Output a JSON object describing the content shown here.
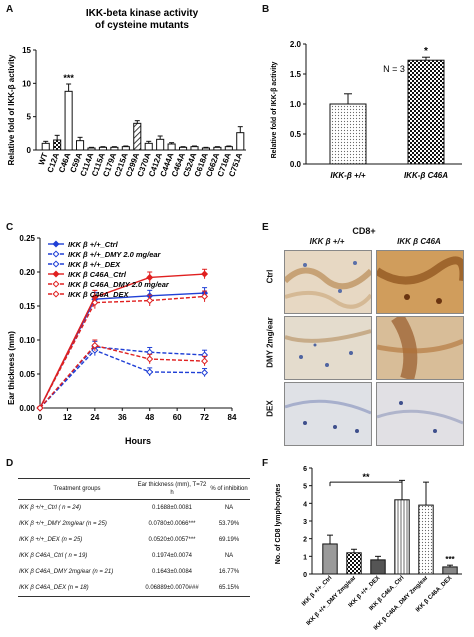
{
  "panels": {
    "A": {
      "label": "A",
      "title_line1": "IKK-beta kinase activity",
      "title_line2": "of cysteine mutants",
      "ylabel": "Relative fold of IKK-β activity",
      "yticks": [
        "0",
        "5",
        "10",
        "15"
      ],
      "annotation": "***"
    },
    "B": {
      "label": "B",
      "n_label": "N = 3",
      "ylabel": "Relative fold of IKK-β activity",
      "yticks": [
        "0.0",
        "0.5",
        "1.0",
        "1.5",
        "2.0"
      ],
      "annotation": "*"
    },
    "C": {
      "label": "C",
      "ylabel": "Ear thickness (mm)",
      "xlabel": "Hours",
      "xticks": [
        "0",
        "12",
        "24",
        "36",
        "48",
        "60",
        "72",
        "84"
      ],
      "yticks": [
        "0.00",
        "0.05",
        "0.10",
        "0.15",
        "0.20",
        "0.25"
      ]
    },
    "D": {
      "label": "D",
      "headers": [
        "Treatment groups",
        "Ear thickness (mm), T=72 h",
        "% of inhibition"
      ],
      "rows": [
        {
          "group": "IKK β +/+_Ctrl  ( n = 24)",
          "value": "0.1688±0.0081",
          "inhibition": "NA"
        },
        {
          "group": "IKK β +/+_DMY 2mg/ear (n = 25)",
          "value": "0.0780±0.0066***",
          "inhibition": "53.79%"
        },
        {
          "group": "IKK β +/+_DEX (n = 25)",
          "value": "0.0520±0.0057***",
          "inhibition": "69.19%"
        },
        {
          "group": "IKK β C46A_Ctrl  ( n = 19)",
          "value": "0.1974±0.0074",
          "inhibition": "NA"
        },
        {
          "group": "IKK β C46A_DMY 2mg/ear (n = 21)",
          "value": "0.1643±0.0084",
          "inhibition": "16.77%"
        },
        {
          "group": "IKK β C46A_DEX (n = 18)",
          "value": "0.06889±0.0070###",
          "inhibition": "65.15%"
        }
      ]
    },
    "E": {
      "label": "E",
      "title": "CD8+",
      "col_headers": [
        "IKK β +/+",
        "IKK β C46A"
      ],
      "row_headers": [
        "Ctrl",
        "DMY 2mg/ear",
        "DEX"
      ]
    },
    "F": {
      "label": "F",
      "ylabel": "No. of CD8 lymphocytes",
      "yticks": [
        "0",
        "1",
        "2",
        "3",
        "4",
        "5",
        "6"
      ],
      "annotation_top": "**",
      "annotation_bar": "***"
    }
  },
  "chart_data": [
    {
      "panel": "A",
      "type": "bar",
      "categories": [
        "WT",
        "C12A",
        "C46A",
        "C59A",
        "C114A",
        "C115A",
        "C179A",
        "C215A",
        "C299A",
        "C370A",
        "C412A",
        "C444A",
        "C464A",
        "C524A",
        "C618A",
        "C662A",
        "C716A",
        "C751A"
      ],
      "values": [
        1.0,
        1.5,
        8.8,
        1.4,
        0.3,
        0.4,
        0.4,
        0.5,
        4.0,
        1.0,
        1.6,
        0.9,
        0.4,
        0.5,
        0.3,
        0.4,
        0.5,
        2.6
      ],
      "errors": [
        0.3,
        0.7,
        1.1,
        0.5,
        0.1,
        0.1,
        0.1,
        0.1,
        0.4,
        0.3,
        0.5,
        0.2,
        0.1,
        0.1,
        0.1,
        0.1,
        0.1,
        0.9
      ],
      "title": "IKK-beta kinase activity of cysteine mutants",
      "ylabel": "Relative fold of IKK-β activity",
      "ylim": [
        0,
        15
      ]
    },
    {
      "panel": "B",
      "type": "bar",
      "categories": [
        "IKK-β +/+",
        "IKK-β C46A"
      ],
      "values": [
        1.0,
        1.73
      ],
      "errors": [
        0.17,
        0.05
      ],
      "ylabel": "Relative fold of IKK-β activity",
      "ylim": [
        0,
        2.0
      ]
    },
    {
      "panel": "C",
      "type": "line",
      "x": [
        0,
        24,
        48,
        72
      ],
      "series": [
        {
          "name": "IKK β +/+_Ctrl",
          "values": [
            0.0,
            0.16,
            0.165,
            0.169
          ],
          "errors": [
            0.002,
            0.01,
            0.008,
            0.008
          ],
          "color": "#1f3fd6",
          "dash": false,
          "filled": true
        },
        {
          "name": "IKK β +/+_DMY 2.0 mg/ear",
          "values": [
            0.0,
            0.09,
            0.082,
            0.078
          ],
          "errors": [
            0.002,
            0.008,
            0.007,
            0.007
          ],
          "color": "#1f3fd6",
          "dash": true,
          "filled": false
        },
        {
          "name": "IKK β +/+_DEX",
          "values": [
            0.0,
            0.085,
            0.053,
            0.052
          ],
          "errors": [
            0.002,
            0.008,
            0.006,
            0.006
          ],
          "color": "#1f3fd6",
          "dash": true,
          "filled": false
        },
        {
          "name": "IKK β C46A_Ctrl",
          "values": [
            0.0,
            0.163,
            0.192,
            0.197
          ],
          "errors": [
            0.002,
            0.01,
            0.008,
            0.007
          ],
          "color": "#e02020",
          "dash": false,
          "filled": true
        },
        {
          "name": "IKK β C46A_DMY 2.0 mg/ear",
          "values": [
            0.0,
            0.155,
            0.158,
            0.164
          ],
          "errors": [
            0.002,
            0.009,
            0.008,
            0.008
          ],
          "color": "#e02020",
          "dash": true,
          "filled": false
        },
        {
          "name": "IKK β C46A_DEX",
          "values": [
            0.0,
            0.092,
            0.072,
            0.069
          ],
          "errors": [
            0.002,
            0.008,
            0.007,
            0.007
          ],
          "color": "#e02020",
          "dash": true,
          "filled": false
        }
      ],
      "xlabel": "Hours",
      "ylabel": "Ear thickness (mm)",
      "xlim": [
        0,
        84
      ],
      "ylim": [
        0,
        0.25
      ],
      "legend": "top-left"
    },
    {
      "panel": "F",
      "type": "bar",
      "categories": [
        "IKK β +/+_Ctrl",
        "IKK β +/+_DMY 2mg/ear",
        "IKK β +/+_DEX",
        "IKK β C46A_Ctrl",
        "IKK β C46A_DMY 2mg/ear",
        "IKK β C46A_DEX"
      ],
      "values": [
        1.7,
        1.2,
        0.8,
        4.2,
        3.9,
        0.4
      ],
      "errors": [
        0.5,
        0.2,
        0.2,
        1.1,
        1.3,
        0.1
      ],
      "ylabel": "No. of CD8 lymphocytes",
      "ylim": [
        0,
        6
      ]
    }
  ]
}
